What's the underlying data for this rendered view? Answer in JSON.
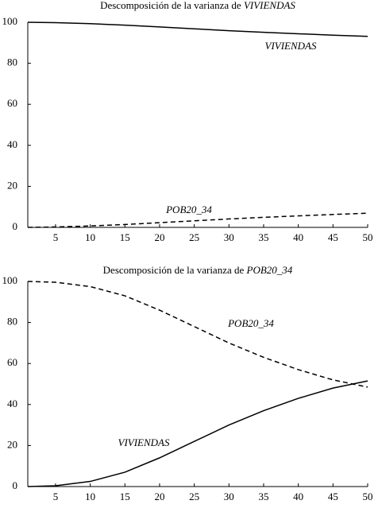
{
  "chart_data": [
    {
      "type": "line",
      "title": "Descomposición de la varianza de",
      "title_italic": "VIVIENDAS",
      "x": [
        1,
        5,
        10,
        15,
        20,
        25,
        30,
        35,
        40,
        45,
        50
      ],
      "series": [
        {
          "name": "VIVIENDAS",
          "color": "#000000",
          "style": "solid",
          "values": [
            100,
            99.8,
            99.3,
            98.6,
            97.7,
            96.8,
            95.9,
            95.1,
            94.4,
            93.7,
            93.1
          ]
        },
        {
          "name": "POB20_34",
          "color": "#000000",
          "style": "dashed",
          "values": [
            0,
            0.2,
            0.7,
            1.4,
            2.3,
            3.2,
            4.1,
            4.9,
            5.6,
            6.3,
            6.9
          ]
        }
      ],
      "xlim": [
        1,
        50
      ],
      "xticks": [
        5,
        10,
        15,
        20,
        25,
        30,
        35,
        40,
        45,
        50
      ],
      "ylim": [
        0,
        100
      ],
      "yticks": [
        0,
        20,
        40,
        60,
        80,
        100
      ],
      "grid": false
    },
    {
      "type": "line",
      "title": "Descomposición de la varianza de",
      "title_italic": "POB20_34",
      "x": [
        1,
        5,
        10,
        15,
        20,
        25,
        30,
        35,
        40,
        45,
        50
      ],
      "series": [
        {
          "name": "POB20_34",
          "color": "#000000",
          "style": "dashed",
          "values": [
            100,
            99.6,
            97.5,
            93,
            86,
            78,
            70,
            63,
            57,
            52,
            48.5
          ]
        },
        {
          "name": "VIVIENDAS",
          "color": "#000000",
          "style": "solid",
          "values": [
            0,
            0.4,
            2.5,
            7,
            14,
            22,
            30,
            37,
            43,
            48,
            51.5
          ]
        }
      ],
      "xlim": [
        1,
        50
      ],
      "xticks": [
        5,
        10,
        15,
        20,
        25,
        30,
        35,
        40,
        45,
        50
      ],
      "ylim": [
        0,
        100
      ],
      "yticks": [
        0,
        20,
        40,
        60,
        80,
        100
      ],
      "grid": false
    }
  ]
}
